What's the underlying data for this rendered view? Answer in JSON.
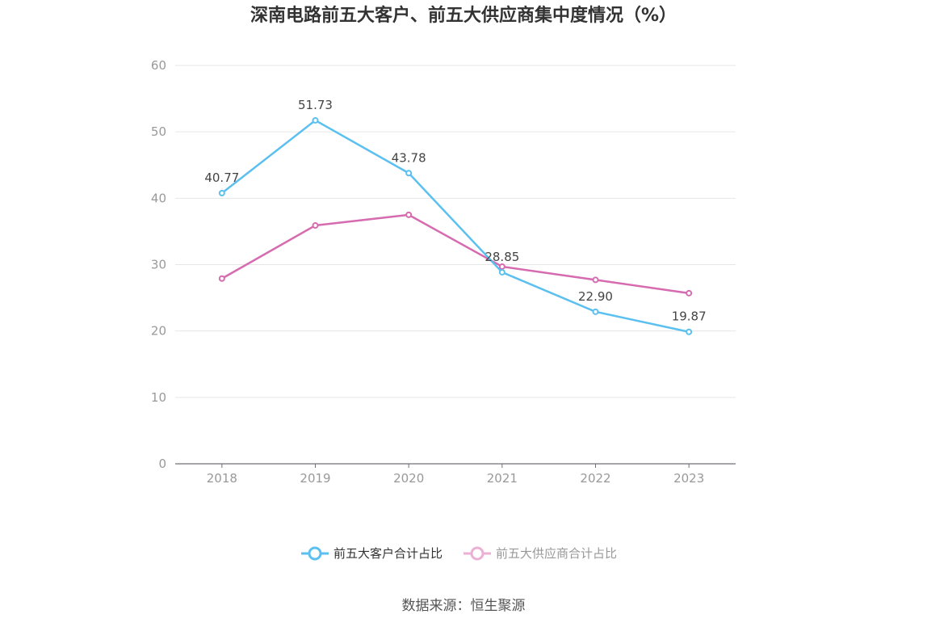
{
  "chart_data": {
    "type": "line",
    "title": "深南电路前五大客户、前五大供应商集中度情况（%）",
    "categories": [
      "2018",
      "2019",
      "2020",
      "2021",
      "2022",
      "2023"
    ],
    "series": [
      {
        "name": "前五大客户合计占比",
        "color": "#5bc0f0",
        "values": [
          40.77,
          51.73,
          43.78,
          28.85,
          22.9,
          19.87
        ],
        "labels": [
          "40.77",
          "51.73",
          "43.78",
          "28.85",
          "22.90",
          "19.87"
        ]
      },
      {
        "name": "前五大供应商合计占比",
        "color": "#d66bb0",
        "values": [
          27.9,
          35.9,
          37.5,
          29.7,
          27.7,
          25.7
        ],
        "labels": []
      }
    ],
    "y_ticks": [
      "0",
      "10",
      "20",
      "30",
      "40",
      "50",
      "60"
    ],
    "ylim": [
      0,
      60
    ],
    "grid": true,
    "legend_position": "bottom"
  },
  "source_text": "数据来源：恒生聚源"
}
